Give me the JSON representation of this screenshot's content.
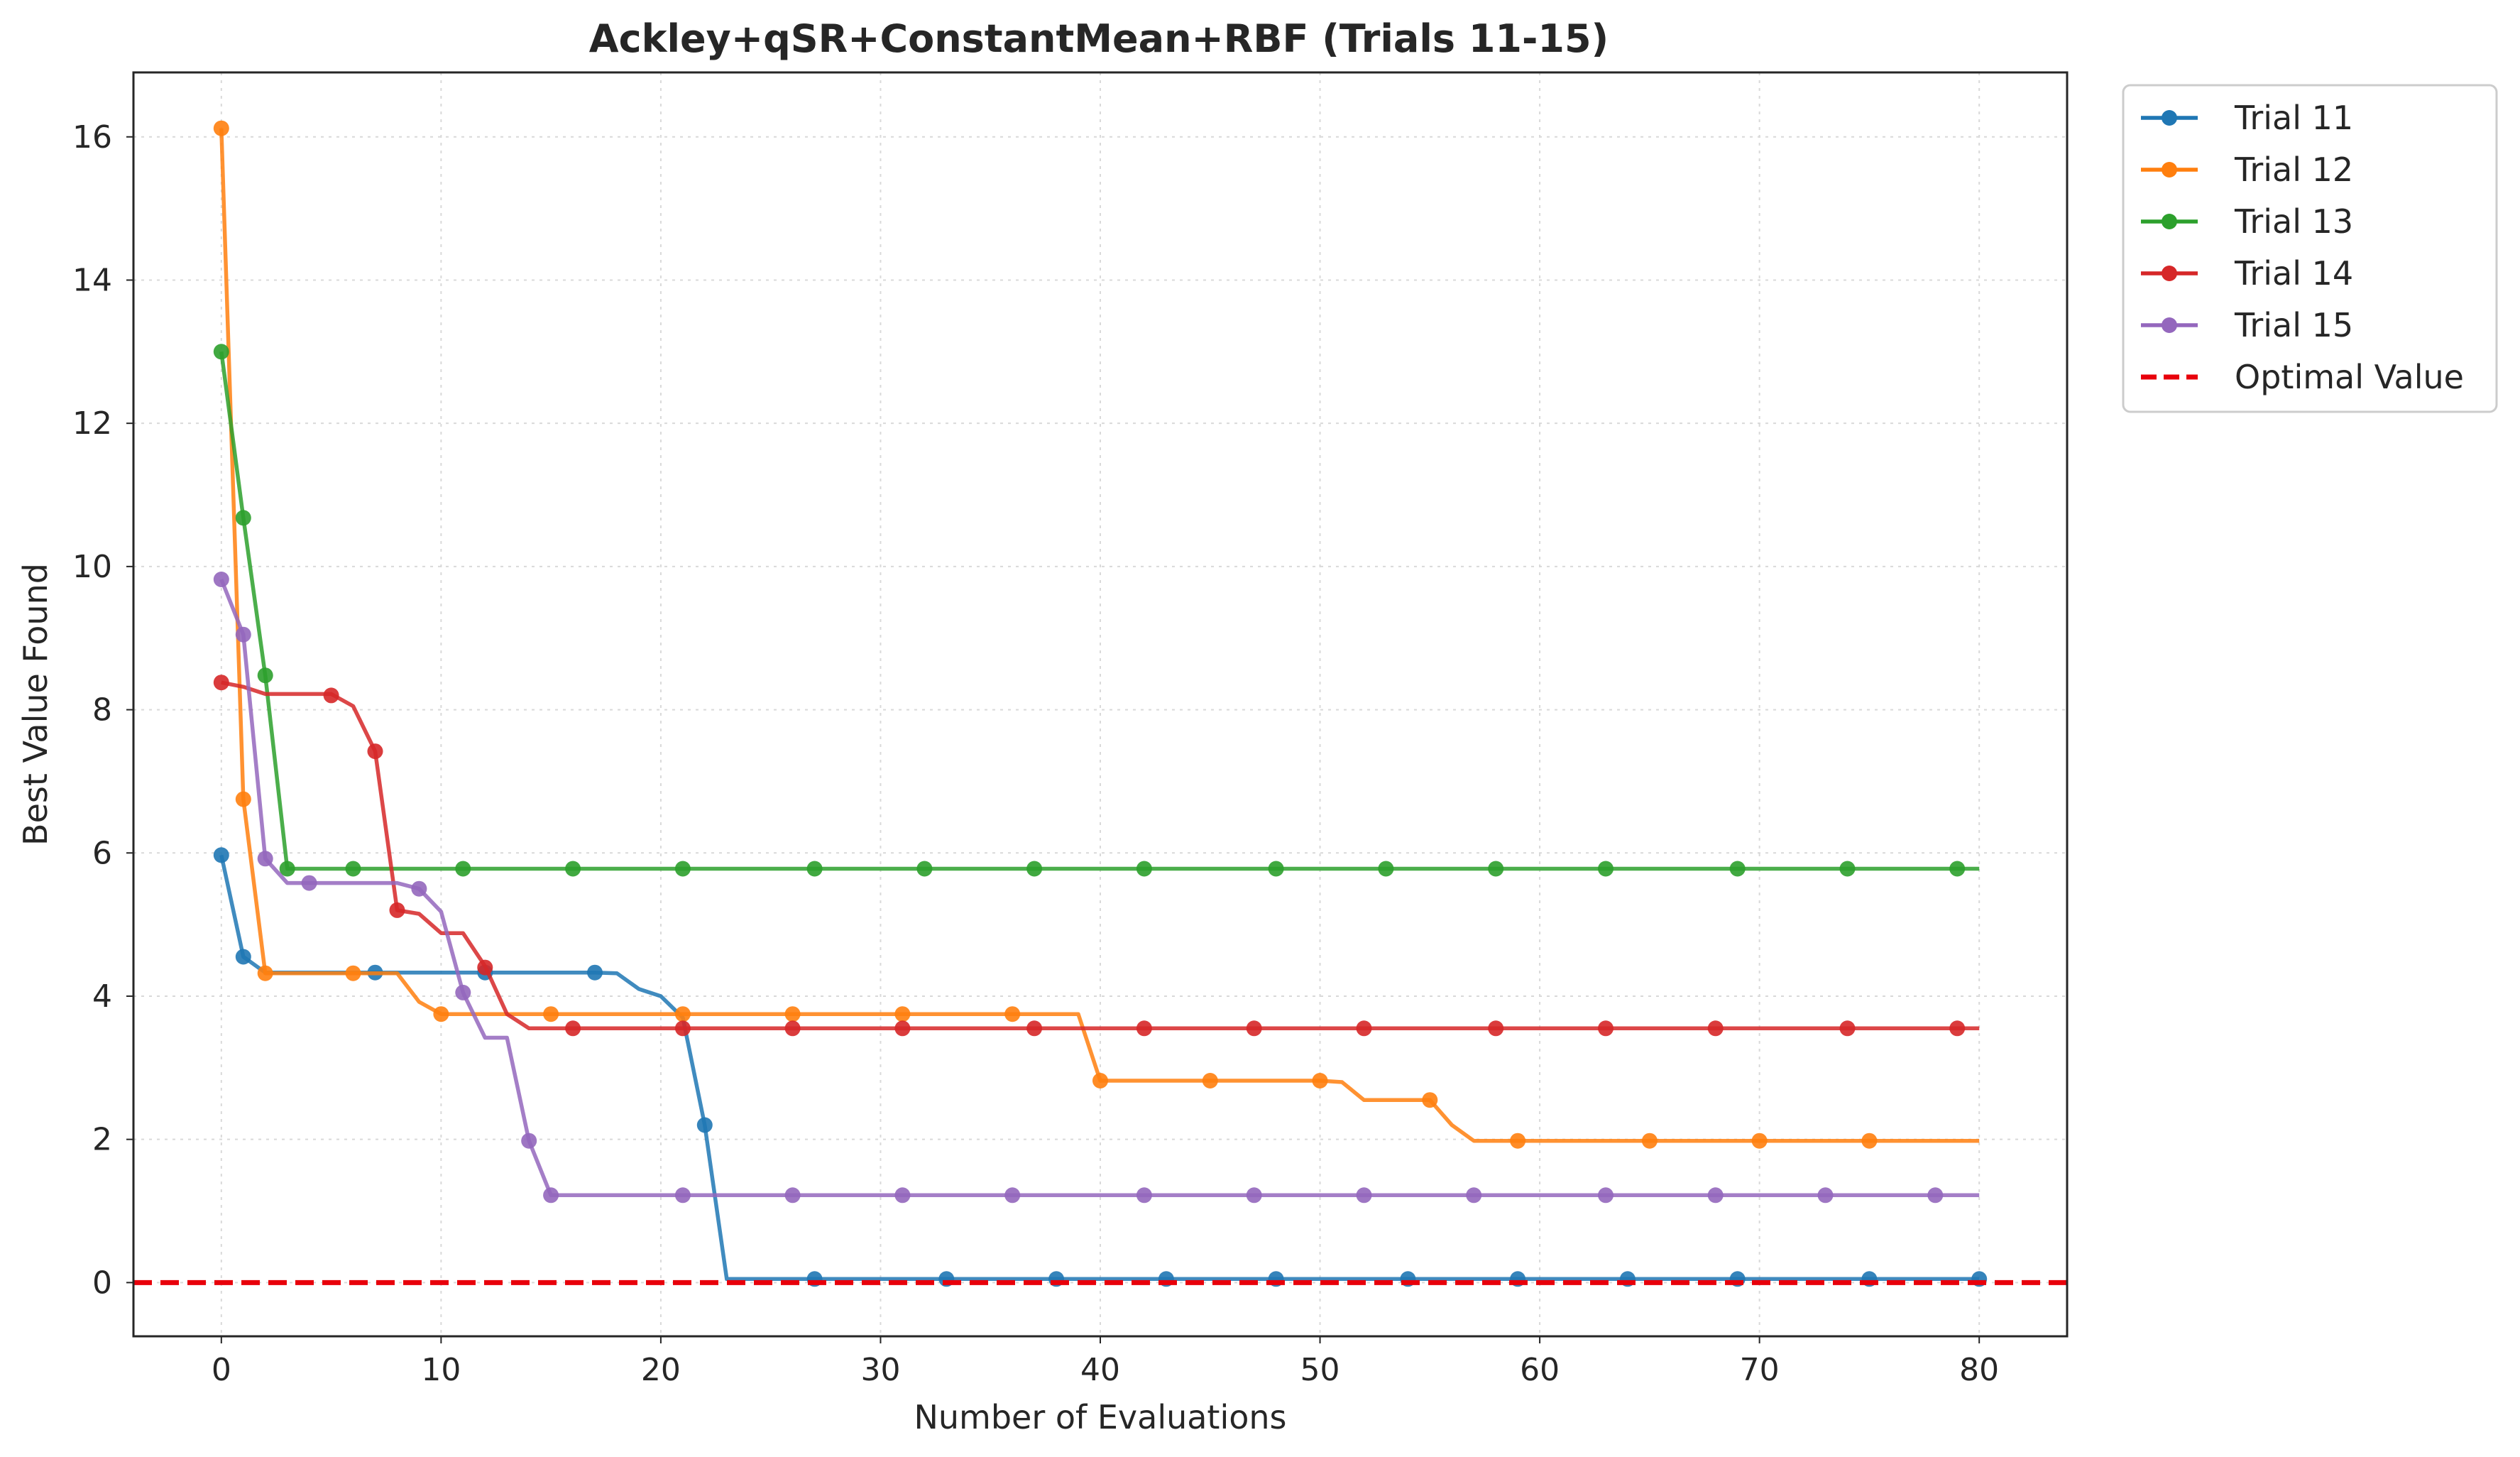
{
  "chart_data": {
    "type": "line",
    "title": "Ackley+qSR+ConstantMean+RBF (Trials 11-15)",
    "xlabel": "Number of Evaluations",
    "ylabel": "Best Value Found",
    "xlim": [
      -4,
      84
    ],
    "ylim": [
      -0.75,
      16.9
    ],
    "xticks": [
      0,
      10,
      20,
      30,
      40,
      50,
      60,
      70,
      80
    ],
    "yticks": [
      0,
      2,
      4,
      6,
      8,
      10,
      12,
      14,
      16
    ],
    "grid": true,
    "legend_position": "outside top-right",
    "series": [
      {
        "name": "Trial 11",
        "color": "#1f77b4",
        "line": [
          [
            0,
            5.97
          ],
          [
            1,
            4.55
          ],
          [
            2,
            4.33
          ],
          [
            17,
            4.33
          ],
          [
            18,
            4.32
          ],
          [
            19,
            4.1
          ],
          [
            20,
            4.0
          ],
          [
            21,
            3.7
          ],
          [
            22,
            2.2
          ],
          [
            23,
            0.05
          ],
          [
            80,
            0.05
          ]
        ],
        "markers": [
          [
            0,
            5.97
          ],
          [
            1,
            4.55
          ],
          [
            7,
            4.33
          ],
          [
            12,
            4.33
          ],
          [
            17,
            4.33
          ],
          [
            22,
            2.2
          ],
          [
            27,
            0.05
          ],
          [
            33,
            0.05
          ],
          [
            38,
            0.05
          ],
          [
            43,
            0.05
          ],
          [
            48,
            0.05
          ],
          [
            54,
            0.05
          ],
          [
            59,
            0.05
          ],
          [
            64,
            0.05
          ],
          [
            69,
            0.05
          ],
          [
            75,
            0.05
          ],
          [
            80,
            0.05
          ]
        ]
      },
      {
        "name": "Trial 12",
        "color": "#ff7f0e",
        "line": [
          [
            0,
            16.12
          ],
          [
            1,
            6.75
          ],
          [
            2,
            4.32
          ],
          [
            8,
            4.32
          ],
          [
            9,
            3.92
          ],
          [
            10,
            3.75
          ],
          [
            39,
            3.75
          ],
          [
            40,
            2.82
          ],
          [
            50,
            2.82
          ],
          [
            51,
            2.8
          ],
          [
            52,
            2.55
          ],
          [
            55,
            2.55
          ],
          [
            56,
            2.2
          ],
          [
            57,
            1.98
          ],
          [
            80,
            1.98
          ]
        ],
        "markers": [
          [
            0,
            16.12
          ],
          [
            1,
            6.75
          ],
          [
            2,
            4.32
          ],
          [
            6,
            4.32
          ],
          [
            10,
            3.75
          ],
          [
            15,
            3.75
          ],
          [
            21,
            3.75
          ],
          [
            26,
            3.75
          ],
          [
            31,
            3.75
          ],
          [
            36,
            3.75
          ],
          [
            40,
            2.82
          ],
          [
            45,
            2.82
          ],
          [
            50,
            2.82
          ],
          [
            55,
            2.55
          ],
          [
            59,
            1.98
          ],
          [
            65,
            1.98
          ],
          [
            70,
            1.98
          ],
          [
            75,
            1.98
          ]
        ]
      },
      {
        "name": "Trial 13",
        "color": "#2ca02c",
        "line": [
          [
            0,
            13.0
          ],
          [
            1,
            10.68
          ],
          [
            2,
            8.48
          ],
          [
            3,
            5.78
          ],
          [
            80,
            5.78
          ]
        ],
        "markers": [
          [
            0,
            13.0
          ],
          [
            1,
            10.68
          ],
          [
            2,
            8.48
          ],
          [
            3,
            5.78
          ],
          [
            6,
            5.78
          ],
          [
            11,
            5.78
          ],
          [
            16,
            5.78
          ],
          [
            21,
            5.78
          ],
          [
            27,
            5.78
          ],
          [
            32,
            5.78
          ],
          [
            37,
            5.78
          ],
          [
            42,
            5.78
          ],
          [
            48,
            5.78
          ],
          [
            53,
            5.78
          ],
          [
            58,
            5.78
          ],
          [
            63,
            5.78
          ],
          [
            69,
            5.78
          ],
          [
            74,
            5.78
          ],
          [
            79,
            5.78
          ]
        ]
      },
      {
        "name": "Trial 14",
        "color": "#d62728",
        "line": [
          [
            0,
            8.38
          ],
          [
            1,
            8.32
          ],
          [
            2,
            8.22
          ],
          [
            5,
            8.22
          ],
          [
            6,
            8.05
          ],
          [
            7,
            7.42
          ],
          [
            8,
            5.2
          ],
          [
            9,
            5.15
          ],
          [
            10,
            4.88
          ],
          [
            11,
            4.88
          ],
          [
            12,
            4.42
          ],
          [
            13,
            3.75
          ],
          [
            14,
            3.55
          ],
          [
            80,
            3.55
          ]
        ],
        "markers": [
          [
            0,
            8.38
          ],
          [
            5,
            8.2
          ],
          [
            7,
            7.42
          ],
          [
            8,
            5.2
          ],
          [
            12,
            4.4
          ],
          [
            16,
            3.55
          ],
          [
            21,
            3.55
          ],
          [
            26,
            3.55
          ],
          [
            31,
            3.55
          ],
          [
            37,
            3.55
          ],
          [
            42,
            3.55
          ],
          [
            47,
            3.55
          ],
          [
            52,
            3.55
          ],
          [
            58,
            3.55
          ],
          [
            63,
            3.55
          ],
          [
            68,
            3.55
          ],
          [
            74,
            3.55
          ],
          [
            79,
            3.55
          ]
        ]
      },
      {
        "name": "Trial 15",
        "color": "#9467bd",
        "line": [
          [
            0,
            9.82
          ],
          [
            1,
            9.05
          ],
          [
            2,
            5.92
          ],
          [
            3,
            5.58
          ],
          [
            8,
            5.58
          ],
          [
            9,
            5.5
          ],
          [
            10,
            5.18
          ],
          [
            11,
            4.05
          ],
          [
            12,
            3.42
          ],
          [
            13,
            3.42
          ],
          [
            14,
            1.98
          ],
          [
            15,
            1.22
          ],
          [
            80,
            1.22
          ]
        ],
        "markers": [
          [
            0,
            9.82
          ],
          [
            1,
            9.05
          ],
          [
            2,
            5.92
          ],
          [
            4,
            5.58
          ],
          [
            9,
            5.5
          ],
          [
            11,
            4.05
          ],
          [
            14,
            1.98
          ],
          [
            15,
            1.22
          ],
          [
            21,
            1.22
          ],
          [
            26,
            1.22
          ],
          [
            31,
            1.22
          ],
          [
            36,
            1.22
          ],
          [
            42,
            1.22
          ],
          [
            47,
            1.22
          ],
          [
            52,
            1.22
          ],
          [
            57,
            1.22
          ],
          [
            63,
            1.22
          ],
          [
            68,
            1.22
          ],
          [
            73,
            1.22
          ],
          [
            78,
            1.22
          ]
        ]
      }
    ],
    "reference_line": {
      "name": "Optimal Value",
      "y": 0,
      "color": "#e8000b",
      "style": "dashed"
    }
  }
}
